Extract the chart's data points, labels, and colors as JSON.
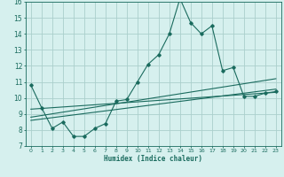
{
  "xlabel": "Humidex (Indice chaleur)",
  "background_color": "#d6f0ee",
  "grid_color": "#aacfcc",
  "line_color": "#1a6b5e",
  "xlim": [
    -0.5,
    23.5
  ],
  "ylim": [
    7,
    16
  ],
  "xticks": [
    0,
    1,
    2,
    3,
    4,
    5,
    6,
    7,
    8,
    9,
    10,
    11,
    12,
    13,
    14,
    15,
    16,
    17,
    18,
    19,
    20,
    21,
    22,
    23
  ],
  "yticks": [
    7,
    8,
    9,
    10,
    11,
    12,
    13,
    14,
    15,
    16
  ],
  "main_x": [
    0,
    1,
    2,
    3,
    4,
    5,
    6,
    7,
    8,
    9,
    10,
    11,
    12,
    13,
    14,
    15,
    16,
    17,
    18,
    19,
    20,
    21,
    22,
    23
  ],
  "main_y": [
    10.8,
    9.4,
    8.1,
    8.5,
    7.6,
    7.6,
    8.1,
    8.4,
    9.8,
    9.9,
    11.0,
    12.1,
    12.7,
    14.0,
    16.2,
    14.7,
    14.0,
    14.5,
    11.7,
    11.9,
    10.1,
    10.1,
    10.3,
    10.4
  ],
  "trend1_x": [
    0,
    23
  ],
  "trend1_y": [
    9.3,
    10.35
  ],
  "trend2_x": [
    0,
    23
  ],
  "trend2_y": [
    8.6,
    10.55
  ],
  "trend3_x": [
    0,
    23
  ],
  "trend3_y": [
    8.8,
    11.2
  ]
}
